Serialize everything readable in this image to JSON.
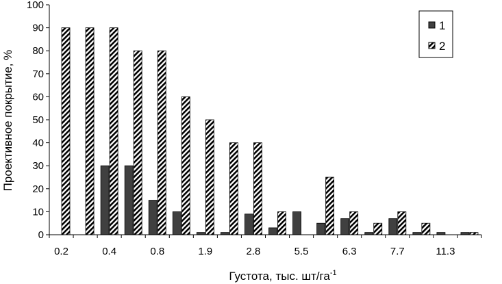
{
  "chart_data": {
    "type": "bar",
    "title": "",
    "xlabel": "Густота, тыс. шт/га",
    "xlabel_sup": "-1",
    "ylabel": "Проективное покрытие, %",
    "ylim": [
      0,
      100
    ],
    "yticks": [
      0,
      10,
      20,
      30,
      40,
      50,
      60,
      70,
      80,
      90,
      100
    ],
    "grid": false,
    "legend_position": "top-right",
    "colors": {
      "series1": "#404040",
      "series2_stripe": "#000000",
      "series2_bg": "#ffffff"
    },
    "x_tick_labels": [
      "0.2",
      "0.4",
      "0.8",
      "1.9",
      "2.8",
      "5.5",
      "6.3",
      "7.7",
      "11.3"
    ],
    "series": [
      {
        "name": "1",
        "pattern": "solid",
        "values": [
          0,
          0,
          30,
          30,
          15,
          10,
          1,
          1,
          9,
          3,
          10,
          5,
          7,
          1,
          7,
          1,
          1,
          1
        ]
      },
      {
        "name": "2",
        "pattern": "striped",
        "values": [
          90,
          90,
          90,
          80,
          80,
          60,
          50,
          40,
          40,
          10,
          0,
          25,
          10,
          5,
          10,
          5,
          0,
          1
        ]
      }
    ]
  }
}
